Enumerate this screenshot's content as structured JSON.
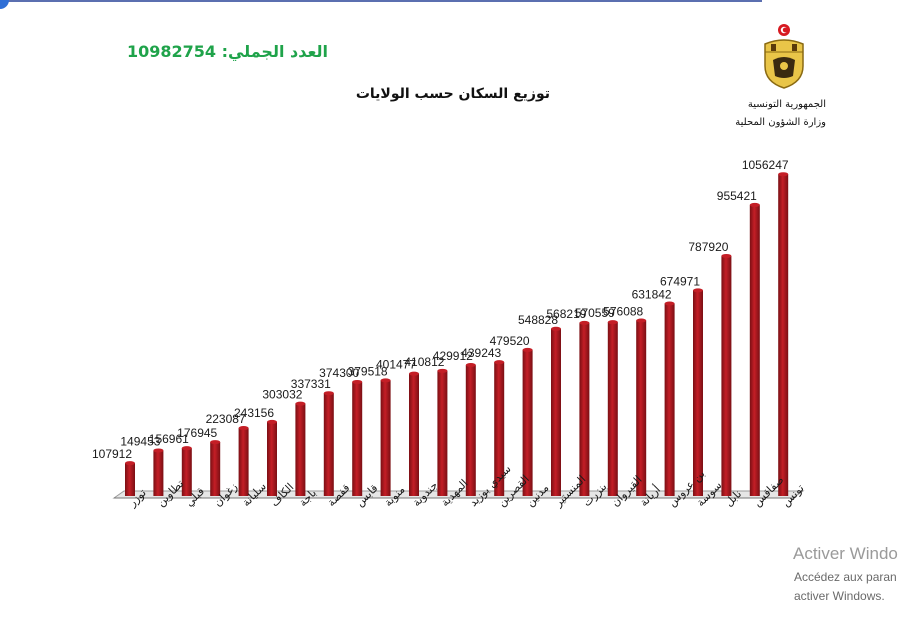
{
  "header": {
    "total_label": "العدد الجملي: 10982754",
    "org_line1": "الجمهورية التونسية",
    "org_line2": "وزارة الشؤون المحلية"
  },
  "watermark": {
    "line1": "Activer Windo",
    "line2": "Accédez aux paran",
    "line3": "activer Windows."
  },
  "colors": {
    "bar": "#c41e26",
    "bar_dark": "#7a0f14",
    "total": "#1fa34a"
  },
  "chart_data": {
    "type": "bar",
    "title": "توزيع السكان حسب الولايات",
    "categories": [
      "توزر",
      "تطاوين",
      "قبلي",
      "زغوان",
      "سليانة",
      "الكاف",
      "باجة",
      "قفصة",
      "قابس",
      "منوبة",
      "جندوبة",
      "المهدية",
      "سيدي بوزيد",
      "القصرين",
      "مدنين",
      "المنستير",
      "بنزرت",
      "القيروان",
      "أريانة",
      "بن عروس",
      "سوسة",
      "نابل",
      "صفاقس",
      "تونس"
    ],
    "values": [
      107912,
      149453,
      156961,
      176945,
      223087,
      243156,
      303032,
      337331,
      374300,
      379518,
      401477,
      410812,
      429912,
      439243,
      479520,
      548828,
      568219,
      570559,
      576088,
      631842,
      674971,
      787920,
      955421,
      1056247
    ],
    "ylim": [
      0,
      1070000
    ],
    "grid": false,
    "legend": "none"
  }
}
